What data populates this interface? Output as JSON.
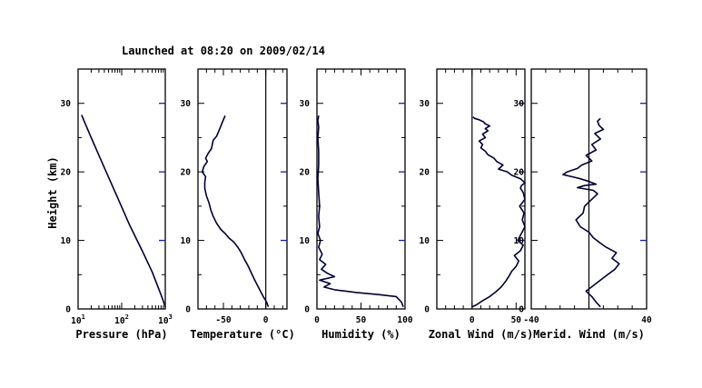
{
  "title": "Launched at 08:20 on 2009/02/14",
  "colors": {
    "axes": "#000000",
    "curve": "#000033",
    "height_ticks": "#1a1aa0",
    "background": "#ffffff"
  },
  "chart_data": [
    {
      "type": "line",
      "xlabel": "Pressure (hPa)",
      "ylabel": "Height (km)",
      "xscale": "log",
      "xlim": [
        10,
        1000
      ],
      "ylim": [
        0,
        35
      ],
      "xticks": [
        {
          "base": "10",
          "exp": "1",
          "v": 10
        },
        {
          "base": "10",
          "exp": "2",
          "v": 100
        },
        {
          "base": "10",
          "exp": "3",
          "v": 1000
        }
      ],
      "yticks": [
        "0",
        "10",
        "20",
        "30"
      ],
      "series": [
        {
          "x": [
            12,
            20,
            40,
            80,
            150,
            300,
            500,
            700,
            850,
            1000
          ],
          "y": [
            28.3,
            25.0,
            20.6,
            16.3,
            12.3,
            8.4,
            5.4,
            3.0,
            1.6,
            0.3
          ]
        }
      ]
    },
    {
      "type": "line",
      "xlabel": "Temperature (°C)",
      "xlim": [
        -80,
        25
      ],
      "ylim": [
        0,
        35
      ],
      "xticks": [
        {
          "label": "-50",
          "v": -50
        },
        {
          "label": "0",
          "v": 0
        }
      ],
      "yticks": [
        "0",
        "10",
        "20",
        "30"
      ],
      "zero_line": 0,
      "series": [
        {
          "x": [
            3,
            1,
            -3,
            -8,
            -13,
            -18,
            -21,
            -25,
            -29,
            -33,
            -38,
            -43,
            -48,
            -53,
            -58,
            -62,
            -65,
            -67,
            -70,
            -72,
            -72,
            -71,
            -75,
            -73,
            -69,
            -71,
            -68,
            -64,
            -63,
            -62,
            -58,
            -56,
            -54,
            -52,
            -50,
            -48
          ],
          "y": [
            0.3,
            1,
            1.8,
            3,
            4.2,
            5.5,
            6.3,
            7.2,
            8.2,
            9.0,
            9.8,
            10.3,
            11,
            11.6,
            12.5,
            13.5,
            14.5,
            15.5,
            16.5,
            17.6,
            18.5,
            19.3,
            20,
            20.8,
            21.5,
            22,
            22.7,
            23.4,
            24.1,
            24.6,
            25.2,
            25.8,
            26.4,
            27,
            27.6,
            28.2
          ]
        }
      ]
    },
    {
      "type": "line",
      "xlabel": "Humidity (%)",
      "xlim": [
        0,
        100
      ],
      "ylim": [
        0,
        35
      ],
      "xticks": [
        {
          "label": "0",
          "v": 0
        },
        {
          "label": "50",
          "v": 50
        },
        {
          "label": "100",
          "v": 100
        }
      ],
      "yticks": [
        "0",
        "10",
        "20",
        "30"
      ],
      "series": [
        {
          "x": [
            98,
            96,
            90,
            70,
            45,
            20,
            8,
            15,
            3,
            20,
            12,
            5,
            10,
            3,
            6,
            2,
            4,
            1,
            3,
            2,
            3,
            2,
            1,
            2,
            2,
            1,
            2,
            1,
            2
          ],
          "y": [
            0.3,
            1.0,
            1.8,
            2.1,
            2.4,
            2.8,
            3.2,
            3.7,
            4.2,
            4.7,
            5.2,
            5.8,
            6.5,
            7.2,
            8,
            9,
            10,
            11,
            12,
            13.5,
            15,
            17,
            19,
            21,
            23,
            25,
            26.5,
            27.5,
            28.2
          ]
        }
      ]
    },
    {
      "type": "line",
      "xlabel": "Zonal Wind (m/s)",
      "xlim": [
        -40,
        60
      ],
      "ylim": [
        0,
        35
      ],
      "xticks": [
        {
          "label": "0",
          "v": 0
        },
        {
          "label": "50",
          "v": 50
        }
      ],
      "yticks": [
        "0",
        "10",
        "20",
        "30"
      ],
      "zero_line": 0,
      "series": [
        {
          "x": [
            0,
            5,
            12,
            20,
            27,
            33,
            38,
            42,
            45,
            50,
            53,
            48,
            55,
            58,
            52,
            56,
            60,
            57,
            59,
            54,
            60,
            58,
            55,
            56,
            60,
            55,
            45,
            40,
            30,
            35,
            28,
            25,
            18,
            15,
            10,
            12,
            8,
            15,
            12,
            18,
            15,
            20,
            15,
            13,
            8,
            3,
            1
          ],
          "y": [
            0.3,
            0.6,
            1.2,
            1.8,
            2.5,
            3.2,
            4.0,
            4.8,
            5.5,
            6.2,
            7.0,
            7.8,
            8.5,
            9.3,
            10.0,
            11.0,
            12.0,
            13.0,
            14.0,
            15.0,
            16.0,
            17.0,
            17.6,
            18.0,
            18.4,
            19.0,
            19.5,
            20.0,
            20.4,
            21.0,
            21.5,
            22.0,
            22.5,
            23.0,
            23.5,
            24.0,
            24.5,
            25.0,
            25.5,
            26.0,
            26.3,
            26.7,
            27.0,
            27.3,
            27.6,
            27.8,
            28.0
          ]
        }
      ]
    },
    {
      "type": "line",
      "xlabel": "Merid. Wind (m/s)",
      "xlim": [
        -40,
        40
      ],
      "ylim": [
        0,
        35
      ],
      "xticks": [
        {
          "label": "-40",
          "v": -40
        },
        {
          "label": "40",
          "v": 40
        }
      ],
      "yticks": [
        "0",
        "10",
        "20",
        "30"
      ],
      "zero_line": 0,
      "series": [
        {
          "x": [
            8,
            5,
            2,
            -2,
            3,
            8,
            13,
            18,
            21,
            16,
            19,
            12,
            8,
            3,
            0,
            -6,
            -9,
            -4,
            -3,
            2,
            6,
            3,
            -8,
            -3,
            5,
            0,
            -6,
            -12,
            -18,
            -15,
            -8,
            -5,
            2,
            -2,
            5,
            2,
            8,
            4,
            10,
            7,
            6,
            8
          ],
          "y": [
            0.3,
            1.0,
            1.8,
            2.6,
            3.4,
            4.2,
            5.0,
            5.8,
            6.6,
            7.4,
            8.2,
            9.0,
            9.6,
            10.4,
            11.2,
            12.0,
            13.0,
            14.0,
            15.0,
            16.0,
            16.8,
            17.3,
            17.7,
            18.0,
            18.2,
            18.6,
            19.0,
            19.3,
            19.6,
            20.0,
            20.5,
            21.0,
            21.6,
            22.4,
            23.2,
            24.0,
            24.8,
            25.6,
            26.2,
            26.8,
            27.4,
            27.8
          ]
        }
      ]
    }
  ]
}
